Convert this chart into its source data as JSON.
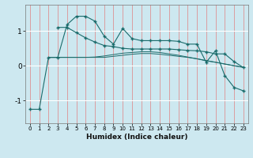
{
  "xlabel": "Humidex (Indice chaleur)",
  "background_color": "#cde8f0",
  "line_color": "#1a6b6b",
  "xlim": [
    -0.5,
    23.5
  ],
  "ylim": [
    -1.65,
    1.75
  ],
  "yticks": [
    -1,
    0,
    1
  ],
  "xticks": [
    0,
    1,
    2,
    3,
    4,
    5,
    6,
    7,
    8,
    9,
    10,
    11,
    12,
    13,
    14,
    15,
    16,
    17,
    18,
    19,
    20,
    21,
    22,
    23
  ],
  "line1_x": [
    0,
    1,
    2,
    3,
    4,
    5,
    6,
    7,
    8,
    9,
    10,
    11,
    12,
    13,
    14,
    15,
    16,
    17,
    18,
    19,
    20,
    21,
    22,
    23
  ],
  "line1_y": [
    -1.25,
    -1.25,
    0.24,
    0.24,
    1.18,
    1.42,
    1.42,
    1.28,
    0.85,
    0.62,
    1.07,
    0.78,
    0.72,
    0.72,
    0.72,
    0.72,
    0.7,
    0.62,
    0.62,
    0.1,
    0.43,
    -0.28,
    -0.62,
    -0.72
  ],
  "line2_x": [
    3,
    4,
    5,
    6,
    7,
    8,
    9,
    10,
    11,
    12,
    13,
    14,
    15,
    16,
    17,
    18,
    19,
    20,
    21,
    22,
    23
  ],
  "line2_y": [
    1.1,
    1.1,
    0.95,
    0.8,
    0.68,
    0.58,
    0.55,
    0.5,
    0.48,
    0.48,
    0.48,
    0.48,
    0.48,
    0.46,
    0.44,
    0.43,
    0.4,
    0.34,
    0.34,
    0.12,
    -0.05
  ],
  "line3_x": [
    2,
    3,
    4,
    5,
    6,
    7,
    8,
    9,
    10,
    11,
    12,
    13,
    14,
    15,
    16,
    17,
    18,
    19,
    20,
    21,
    22,
    23
  ],
  "line3_y": [
    0.24,
    0.24,
    0.24,
    0.24,
    0.24,
    0.24,
    0.24,
    0.27,
    0.3,
    0.33,
    0.35,
    0.35,
    0.33,
    0.3,
    0.27,
    0.24,
    0.2,
    0.15,
    0.1,
    0.05,
    0.0,
    -0.05
  ],
  "line4_x": [
    2,
    3,
    4,
    5,
    6,
    7,
    8,
    9,
    10,
    11,
    12,
    13,
    14,
    15,
    16,
    17,
    18,
    19,
    20,
    21,
    22,
    23
  ],
  "line4_y": [
    0.24,
    0.24,
    0.24,
    0.24,
    0.24,
    0.25,
    0.28,
    0.32,
    0.36,
    0.38,
    0.4,
    0.4,
    0.38,
    0.34,
    0.3,
    0.25,
    0.2,
    0.14,
    0.1,
    0.05,
    0.0,
    -0.04
  ]
}
